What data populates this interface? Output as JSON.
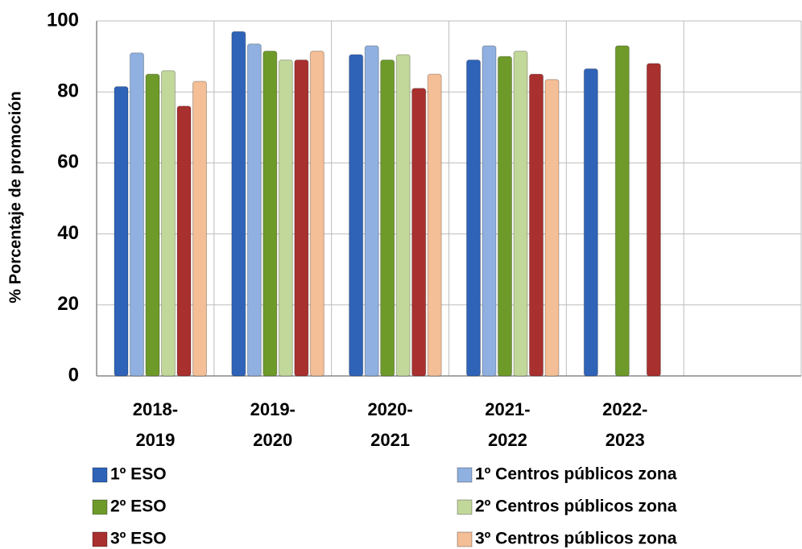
{
  "chart_data": {
    "type": "bar",
    "y_axis_label": "% Porcentaje de promoción",
    "categories": [
      "2018-2019",
      "2019-2020",
      "2020-2021",
      "2021-2022",
      "2022-2023",
      null
    ],
    "series": [
      {
        "name": "1º ESO",
        "color": "#2e63b8",
        "values": [
          81.5,
          97,
          90.5,
          89,
          86.5,
          null
        ]
      },
      {
        "name": "1º Centros públicos zona",
        "color": "#8fb0e0",
        "values": [
          91,
          93.5,
          93,
          93,
          null,
          null
        ]
      },
      {
        "name": "2º ESO",
        "color": "#6e9a2a",
        "values": [
          85,
          91.5,
          89,
          90,
          93,
          null
        ]
      },
      {
        "name": "2º Centros públicos zona",
        "color": "#c2d79a",
        "values": [
          86,
          89,
          90.5,
          91.5,
          null,
          null
        ]
      },
      {
        "name": "3º ESO",
        "color": "#a8302e",
        "values": [
          76,
          89,
          81,
          85,
          88,
          null
        ]
      },
      {
        "name": "3º Centros públicos zona",
        "color": "#f4be96",
        "values": [
          83,
          91.5,
          85,
          83.5,
          null,
          null
        ]
      }
    ],
    "ylim": [
      0,
      100
    ],
    "yticks": [
      0,
      20,
      40,
      60,
      80,
      100
    ],
    "grid": true
  }
}
